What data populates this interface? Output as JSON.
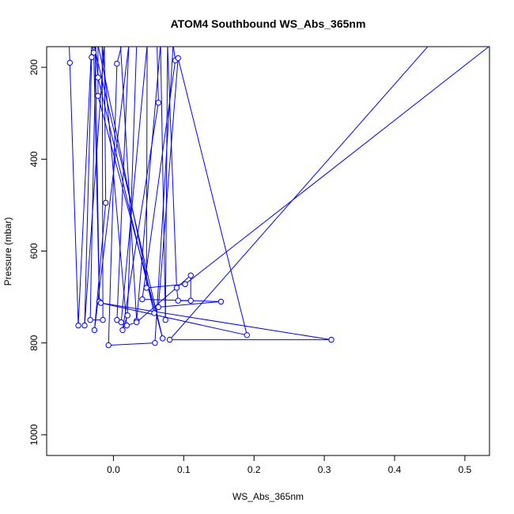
{
  "chart_data": {
    "type": "line",
    "title": "ATOM4 Southbound WS_Abs_365nm",
    "xlabel": "WS_Abs_365nm",
    "ylabel": "Pressure (mbar)",
    "xlim": [
      -0.095,
      0.535
    ],
    "ylim": [
      1045,
      155
    ],
    "y_reversed": true,
    "x_ticks": [
      0.0,
      0.1,
      0.2,
      0.3,
      0.4,
      0.5
    ],
    "x_tick_labels": [
      "0.0",
      "0.1",
      "0.2",
      "0.3",
      "0.4",
      "0.5"
    ],
    "y_ticks": [
      200,
      400,
      600,
      800,
      1000
    ],
    "y_tick_labels": [
      "200",
      "400",
      "600",
      "800",
      "1000"
    ],
    "grid": false,
    "series_color": "#0000ff",
    "series": [
      {
        "marker": "open-circle",
        "points": [
          {
            "x": -0.063,
            "y": 150,
            "m": false
          },
          {
            "x": -0.062,
            "y": 190,
            "m": true
          },
          {
            "x": -0.05,
            "y": 762,
            "m": true
          },
          {
            "x": -0.031,
            "y": 150,
            "m": false
          },
          {
            "x": -0.028,
            "y": 168,
            "m": true
          },
          {
            "x": -0.02,
            "y": 710,
            "m": true
          },
          {
            "x": -0.026,
            "y": 150,
            "m": false
          },
          {
            "x": -0.022,
            "y": 222,
            "m": true
          },
          {
            "x": 0.058,
            "y": 735,
            "m": true
          },
          {
            "x": -0.022,
            "y": 150,
            "m": false
          },
          {
            "x": -0.022,
            "y": 262,
            "m": true
          },
          {
            "x": 0.07,
            "y": 790,
            "m": true
          },
          {
            "x": -0.028,
            "y": 150,
            "m": false
          },
          {
            "x": -0.031,
            "y": 178,
            "m": true
          },
          {
            "x": -0.041,
            "y": 762,
            "m": true
          },
          {
            "x": -0.013,
            "y": 150,
            "m": false
          },
          {
            "x": -0.011,
            "y": 495,
            "m": true
          },
          {
            "x": -0.027,
            "y": 772,
            "m": true
          },
          {
            "x": 0.022,
            "y": 150,
            "m": false
          },
          {
            "x": 0.005,
            "y": 750,
            "m": true
          },
          {
            "x": 0.011,
            "y": 755,
            "m": true
          },
          {
            "x": 0.048,
            "y": 150,
            "m": false
          },
          {
            "x": 0.047,
            "y": 680,
            "m": true
          },
          {
            "x": 0.102,
            "y": 672,
            "m": true
          },
          {
            "x": 0.534,
            "y": 155,
            "m": false
          },
          {
            "x": 0.012,
            "y": 150,
            "m": false
          },
          {
            "x": 0.005,
            "y": 192,
            "m": true
          },
          {
            "x": -0.007,
            "y": 805,
            "m": true
          },
          {
            "x": 0.059,
            "y": 800,
            "m": true
          },
          {
            "x": 0.085,
            "y": 150,
            "m": false
          },
          {
            "x": 0.088,
            "y": 185,
            "m": true
          },
          {
            "x": 0.041,
            "y": 705,
            "m": true
          },
          {
            "x": 0.153,
            "y": 710,
            "m": true
          },
          {
            "x": 0.064,
            "y": 722,
            "m": true
          },
          {
            "x": 0.092,
            "y": 180,
            "m": true
          },
          {
            "x": 0.19,
            "y": 783,
            "m": true
          },
          {
            "x": -0.018,
            "y": 713,
            "m": true
          },
          {
            "x": 0.31,
            "y": 793,
            "m": true
          },
          {
            "x": 0.08,
            "y": 793,
            "m": true
          },
          {
            "x": 0.45,
            "y": 150,
            "m": false
          },
          {
            "x": 0.062,
            "y": 150,
            "m": false
          },
          {
            "x": 0.064,
            "y": 277,
            "m": true
          },
          {
            "x": 0.013,
            "y": 772,
            "m": true
          },
          {
            "x": 0.02,
            "y": 740,
            "m": true
          },
          {
            "x": 0.033,
            "y": 150,
            "m": false
          },
          {
            "x": 0.01,
            "y": 150,
            "m": false
          },
          {
            "x": 0.033,
            "y": 752,
            "m": true
          },
          {
            "x": 0.067,
            "y": 150,
            "m": false
          },
          {
            "x": 0.074,
            "y": 750,
            "m": true
          },
          {
            "x": 0.077,
            "y": 150,
            "m": false
          },
          {
            "x": 0.09,
            "y": 680,
            "m": true
          },
          {
            "x": 0.092,
            "y": 708,
            "m": true
          },
          {
            "x": 0.11,
            "y": 708,
            "m": true
          },
          {
            "x": 0.11,
            "y": 653,
            "m": true
          },
          {
            "x": 0.033,
            "y": 755,
            "m": true
          },
          {
            "x": 0.019,
            "y": 762,
            "m": true
          },
          {
            "x": -0.016,
            "y": 150,
            "m": false
          },
          {
            "x": -0.015,
            "y": 750,
            "m": true
          },
          {
            "x": -0.033,
            "y": 750,
            "m": true
          },
          {
            "x": -0.025,
            "y": 150,
            "m": false
          }
        ]
      }
    ]
  }
}
